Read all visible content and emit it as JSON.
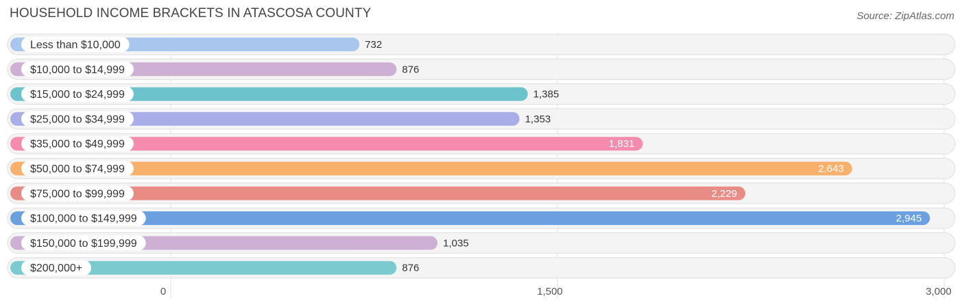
{
  "title": "HOUSEHOLD INCOME BRACKETS IN ATASCOSA COUNTY",
  "source": "Source: ZipAtlas.com",
  "chart_data": {
    "type": "bar",
    "orientation": "horizontal",
    "categories": [
      "Less than $10,000",
      "$10,000 to $14,999",
      "$15,000 to $24,999",
      "$25,000 to $34,999",
      "$35,000 to $49,999",
      "$50,000 to $74,999",
      "$75,000 to $99,999",
      "$100,000 to $149,999",
      "$150,000 to $199,999",
      "$200,000+"
    ],
    "values": [
      732,
      876,
      1385,
      1353,
      1831,
      2643,
      2229,
      2945,
      1035,
      876
    ],
    "value_labels": [
      "732",
      "876",
      "1,385",
      "1,353",
      "1,831",
      "2,643",
      "2,229",
      "2,945",
      "1,035",
      "876"
    ],
    "colors": [
      "#a9c7ee",
      "#cdb0d3",
      "#6cc3cc",
      "#a9aee8",
      "#f68cad",
      "#f9b06b",
      "#ea8c86",
      "#6aa0e0",
      "#cdb0d3",
      "#7acbcf"
    ],
    "xlim": [
      0,
      3000
    ],
    "xticks": [
      0,
      1500,
      3000
    ],
    "xtick_labels": [
      "0",
      "1,500",
      "3,000"
    ],
    "grid": true
  }
}
